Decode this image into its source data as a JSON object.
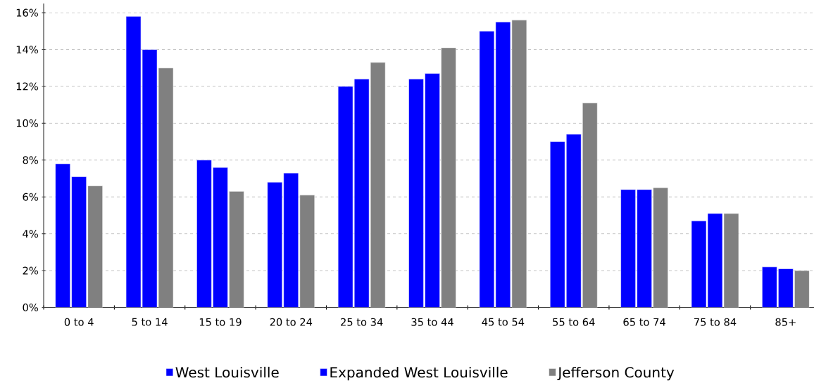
{
  "chart_data": {
    "type": "bar",
    "categories": [
      "0 to 4",
      "5 to 14",
      "15 to 19",
      "20 to 24",
      "25 to 34",
      "35 to 44",
      "45 to 54",
      "55 to 64",
      "65 to 74",
      "75 to 84",
      "85+"
    ],
    "series": [
      {
        "name": "West Louisville",
        "color": "#0000ff",
        "values": [
          7.8,
          15.8,
          8.0,
          6.8,
          12.0,
          12.4,
          15.0,
          9.0,
          6.4,
          4.7,
          2.2
        ]
      },
      {
        "name": "Expanded West Louisville",
        "color": "#0000ff",
        "values": [
          7.1,
          14.0,
          7.6,
          7.3,
          12.4,
          12.7,
          15.5,
          9.4,
          6.4,
          5.1,
          2.1
        ]
      },
      {
        "name": "Jefferson County",
        "color": "#808080",
        "values": [
          6.6,
          13.0,
          6.3,
          6.1,
          13.3,
          14.1,
          15.6,
          11.1,
          6.5,
          5.1,
          2.0
        ]
      }
    ],
    "ylim": [
      0,
      16.5
    ],
    "yticks": [
      {
        "value": 0,
        "label": "0%"
      },
      {
        "value": 2,
        "label": "2%"
      },
      {
        "value": 4,
        "label": "4%"
      },
      {
        "value": 6,
        "label": "6%"
      },
      {
        "value": 8,
        "label": "8%"
      },
      {
        "value": 10,
        "label": "10%"
      },
      {
        "value": 12,
        "label": "12%"
      },
      {
        "value": 14,
        "label": "14%"
      },
      {
        "value": 16,
        "label": "16%"
      }
    ],
    "grid": "y",
    "legend": "bottom"
  }
}
